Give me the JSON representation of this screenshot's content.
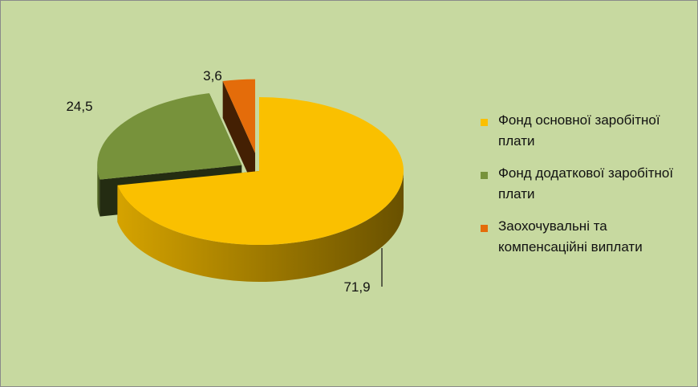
{
  "chart_data": {
    "type": "pie",
    "title": "",
    "values": [
      71.9,
      24.5,
      3.6
    ],
    "value_labels": [
      "71,9",
      "24,5",
      "3,6"
    ],
    "categories": [
      "Фонд основної заробітної плати",
      "Фонд додаткової заробітної плати",
      "Заохочувальні та компенсаційні виплати"
    ],
    "colors": [
      "#fac000",
      "#77923b",
      "#e46c0a"
    ],
    "three_d": true,
    "exploded": true,
    "legend_position": "right"
  },
  "legend": {
    "items": [
      {
        "label": "Фонд основної заробітної плати",
        "color": "#fac000"
      },
      {
        "label": "Фонд додаткової заробітної плати",
        "color": "#77923b"
      },
      {
        "label": "Заохочувальні та компенсаційні виплати",
        "color": "#e46c0a"
      }
    ]
  },
  "colors": {
    "plot_background": "#c7d9a0",
    "label_text": "#111111"
  }
}
